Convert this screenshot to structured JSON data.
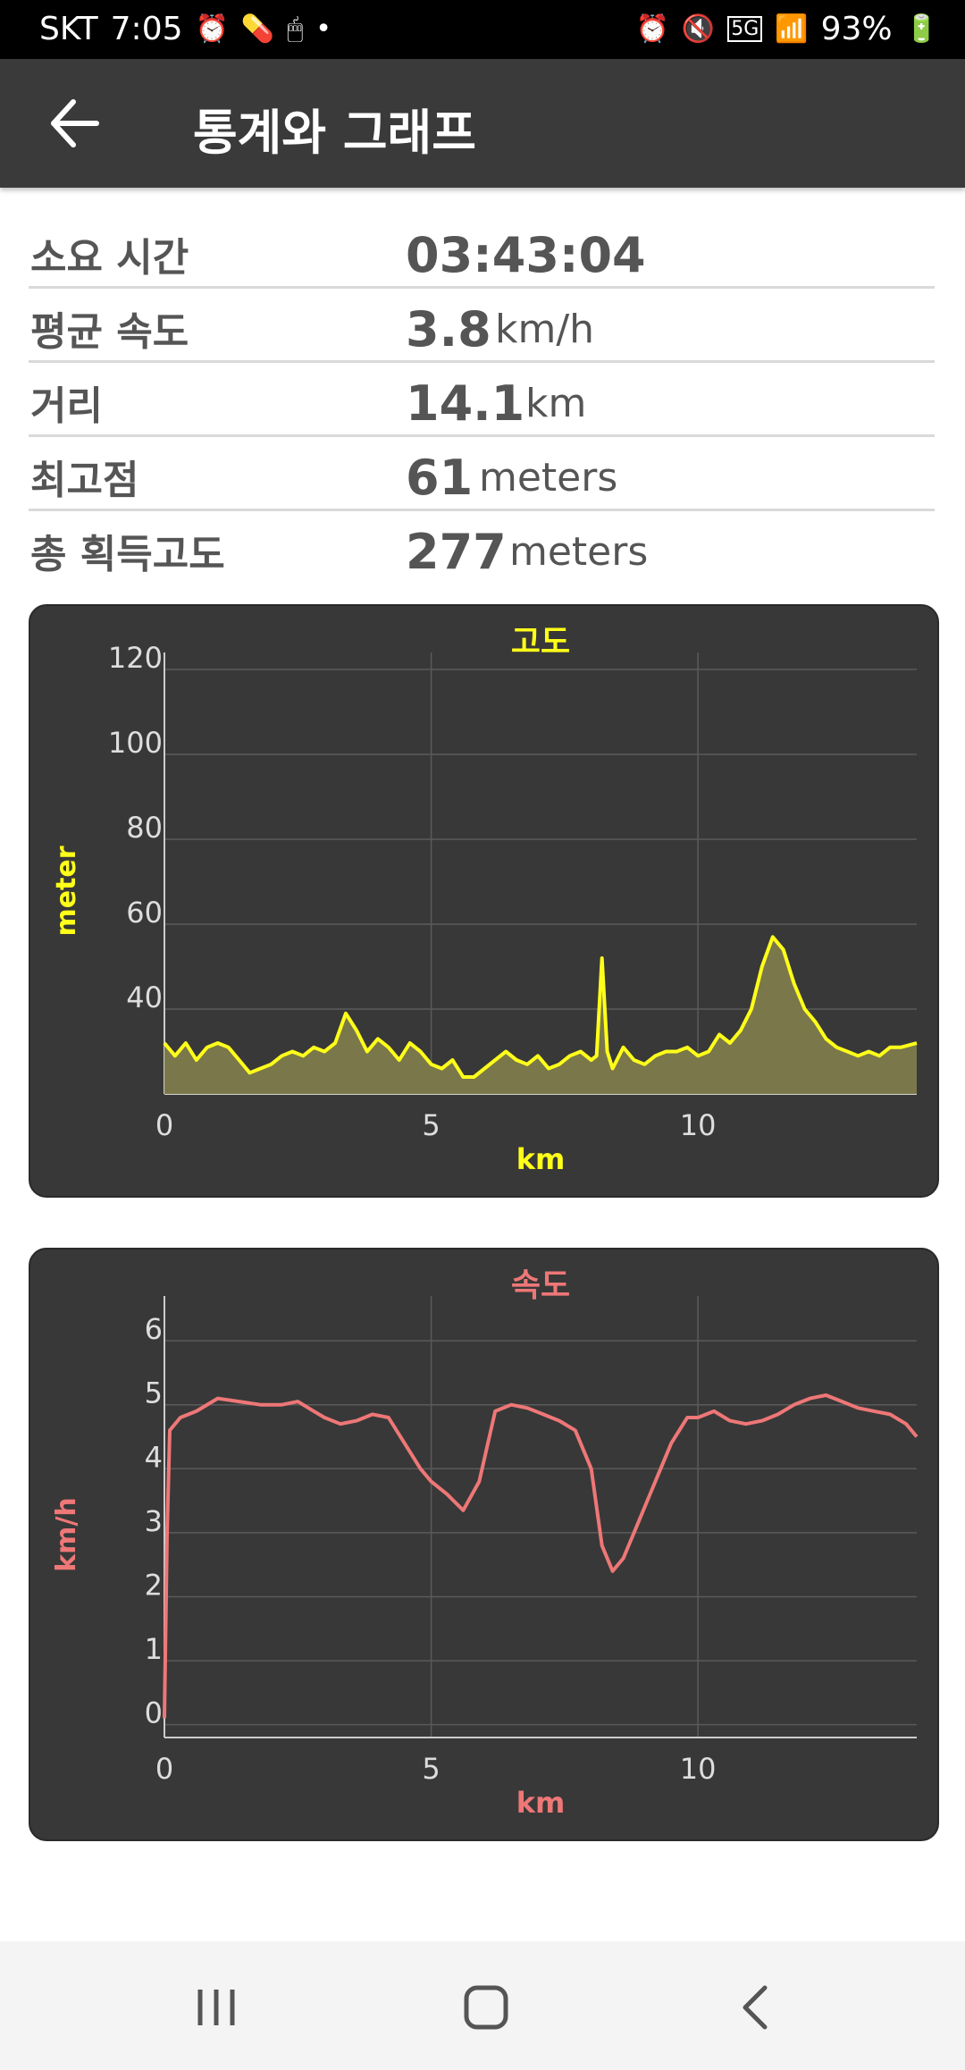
{
  "status_bar": {
    "carrier": "SKT",
    "time": "7:05",
    "battery": "93%",
    "network": "5G",
    "left_icons": [
      "alarm-icon",
      "pill-icon",
      "mouse-icon",
      "dot-icon"
    ],
    "right_icons": [
      "alarm-icon",
      "mute-icon",
      "5g-icon",
      "signal-icon",
      "battery-icon"
    ]
  },
  "app_bar": {
    "title": "통계와 그래프",
    "back_icon": "arrow-left-icon"
  },
  "stats": [
    {
      "label": "소요 시간",
      "value": "03:43:04",
      "unit": ""
    },
    {
      "label": "평균 속도",
      "value": "3.8",
      "unit": "km/h"
    },
    {
      "label": "거리",
      "value": "14.1",
      "unit": "km"
    },
    {
      "label": "최고점",
      "value": "61",
      "unit": "meters"
    },
    {
      "label": "총 획득고도",
      "value": "277",
      "unit": "meters"
    }
  ],
  "colors": {
    "background": "#ffffff",
    "app_bar": "#3a3a3a",
    "card": "#383838",
    "elevation_line": "#ffff1a",
    "elevation_fill": "#7d7a4b",
    "speed_line": "#ee7777",
    "grid": "#5a5a5a"
  },
  "chart_data": [
    {
      "type": "area",
      "title": "고도",
      "xlabel": "km",
      "ylabel": "meter",
      "xlim": [
        0,
        14.1
      ],
      "ylim": [
        20,
        124
      ],
      "xticks": [
        0,
        5,
        10
      ],
      "yticks": [
        40,
        60,
        80,
        100,
        120
      ],
      "grid": true,
      "color": "#ffff1a",
      "series": [
        {
          "x": [
            0,
            0.2,
            0.4,
            0.6,
            0.8,
            1.0,
            1.2,
            1.4,
            1.6,
            1.8,
            2.0,
            2.2,
            2.4,
            2.6,
            2.8,
            3.0,
            3.2,
            3.4,
            3.6,
            3.8,
            4.0,
            4.2,
            4.4,
            4.6,
            4.8,
            5.0,
            5.2,
            5.4,
            5.6,
            5.8,
            6.0,
            6.2,
            6.4,
            6.6,
            6.8,
            7.0,
            7.2,
            7.4,
            7.6,
            7.8,
            8.0,
            8.1,
            8.2,
            8.3,
            8.4,
            8.6,
            8.8,
            9.0,
            9.2,
            9.4,
            9.6,
            9.8,
            10.0,
            10.2,
            10.4,
            10.6,
            10.8,
            11.0,
            11.2,
            11.4,
            11.6,
            11.8,
            12.0,
            12.2,
            12.4,
            12.6,
            12.8,
            13.0,
            13.2,
            13.4,
            13.6,
            13.8,
            14.1
          ],
          "y": [
            32,
            29,
            32,
            28,
            31,
            32,
            31,
            28,
            25,
            26,
            27,
            29,
            30,
            29,
            31,
            30,
            32,
            39,
            35,
            30,
            33,
            31,
            28,
            32,
            30,
            27,
            26,
            28,
            24,
            24,
            26,
            28,
            30,
            28,
            27,
            29,
            26,
            27,
            29,
            30,
            28,
            29,
            52,
            30,
            26,
            31,
            28,
            27,
            29,
            30,
            30,
            31,
            29,
            30,
            34,
            32,
            35,
            40,
            50,
            57,
            54,
            46,
            40,
            37,
            33,
            31,
            30,
            29,
            30,
            29,
            31,
            31,
            32
          ]
        }
      ]
    },
    {
      "type": "line",
      "title": "속도",
      "xlabel": "km",
      "ylabel": "km/h",
      "xlim": [
        0,
        14.1
      ],
      "ylim": [
        -0.2,
        6.7
      ],
      "xticks": [
        0,
        5,
        10
      ],
      "yticks": [
        0,
        1,
        2,
        3,
        4,
        5,
        6
      ],
      "grid": true,
      "color": "#ee7777",
      "series": [
        {
          "x": [
            0,
            0.05,
            0.1,
            0.3,
            0.6,
            1.0,
            1.4,
            1.8,
            2.2,
            2.5,
            2.8,
            3.0,
            3.3,
            3.6,
            3.9,
            4.2,
            4.5,
            4.8,
            5.0,
            5.3,
            5.6,
            5.9,
            6.2,
            6.5,
            6.8,
            7.1,
            7.4,
            7.7,
            8.0,
            8.2,
            8.4,
            8.6,
            8.9,
            9.2,
            9.5,
            9.8,
            10.0,
            10.3,
            10.6,
            10.9,
            11.2,
            11.5,
            11.8,
            12.1,
            12.4,
            12.7,
            13.0,
            13.3,
            13.6,
            13.9,
            14.1
          ],
          "y": [
            0.1,
            3.0,
            4.6,
            4.8,
            4.9,
            5.1,
            5.05,
            5.0,
            5.0,
            5.05,
            4.9,
            4.8,
            4.7,
            4.75,
            4.85,
            4.8,
            4.4,
            4.0,
            3.8,
            3.6,
            3.35,
            3.8,
            4.9,
            5.0,
            4.95,
            4.85,
            4.75,
            4.6,
            4.0,
            2.8,
            2.4,
            2.6,
            3.2,
            3.8,
            4.4,
            4.8,
            4.8,
            4.9,
            4.75,
            4.7,
            4.75,
            4.85,
            5.0,
            5.1,
            5.15,
            5.05,
            4.95,
            4.9,
            4.85,
            4.7,
            4.5
          ]
        }
      ]
    }
  ],
  "nav_bar": {
    "icons": [
      "recent-apps-icon",
      "home-icon",
      "back-icon"
    ]
  }
}
